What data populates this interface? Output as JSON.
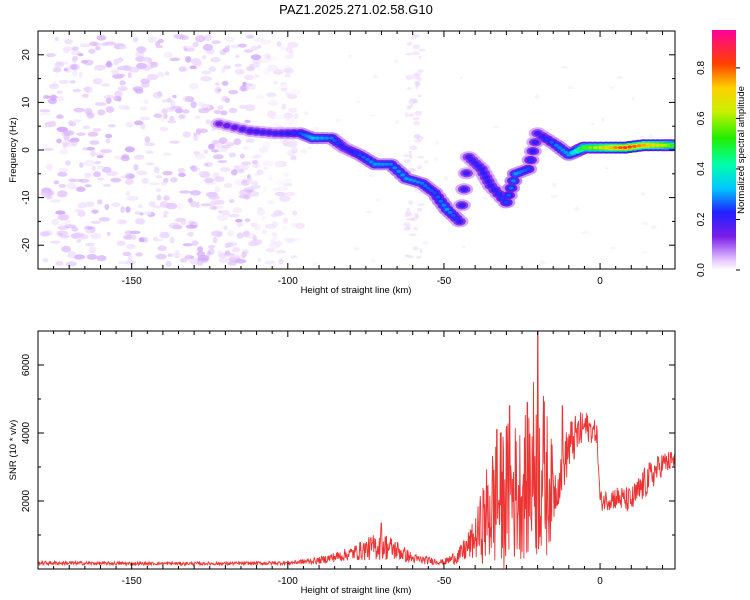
{
  "figure_title": "PAZ1.2025.271.02.58.G10",
  "colors": {
    "snr_line": "#ee3333",
    "axes": "#000000",
    "background": "#ffffff"
  },
  "chart_data": [
    {
      "type": "heatmap",
      "name": "spectrogram",
      "title": "PAZ1.2025.271.02.58.G10",
      "xlabel": "Height of straight line (km)",
      "ylabel": "Frequency (Hz)",
      "xlim": [
        -180,
        24
      ],
      "ylim": [
        -25,
        25
      ],
      "xticks": [
        -150,
        -100,
        -50,
        0
      ],
      "xtick_labels": [
        "-150",
        "-100",
        "-50",
        "0"
      ],
      "yticks": [
        -20,
        -10,
        0,
        10,
        20
      ],
      "ytick_labels": [
        "-20",
        "-10",
        "0",
        "10",
        "20"
      ],
      "colorbar": {
        "label": "Normalized spectral amplitude",
        "range": [
          0,
          0.95
        ],
        "ticks": [
          0.0,
          0.2,
          0.4,
          0.6,
          0.8
        ],
        "tick_labels": [
          "0.0",
          "0.2",
          "0.4",
          "0.6",
          "0.8"
        ],
        "colormap": "rainbow (white-violet-blue-cyan-green-yellow-red-magenta)"
      },
      "noise_region": {
        "x_range": [
          -178,
          -96
        ],
        "frequency_range": [
          -24,
          24
        ],
        "typical_amplitude": 0.04
      },
      "ridge": [
        {
          "x": -122,
          "freq": 5.5,
          "amp": 0.15
        },
        {
          "x": -112,
          "freq": 4.0,
          "amp": 0.2
        },
        {
          "x": -104,
          "freq": 3.5,
          "amp": 0.2
        },
        {
          "x": -96,
          "freq": 3.5,
          "amp": 0.25
        },
        {
          "x": -92,
          "freq": 2.5,
          "amp": 0.32
        },
        {
          "x": -86,
          "freq": 2.5,
          "amp": 0.28
        },
        {
          "x": -82,
          "freq": 0.5,
          "amp": 0.2
        },
        {
          "x": -77,
          "freq": -1.0,
          "amp": 0.25
        },
        {
          "x": -72,
          "freq": -3.0,
          "amp": 0.3
        },
        {
          "x": -67,
          "freq": -3.0,
          "amp": 0.28
        },
        {
          "x": -62,
          "freq": -6.0,
          "amp": 0.3
        },
        {
          "x": -57,
          "freq": -7.0,
          "amp": 0.28
        },
        {
          "x": -53,
          "freq": -9.0,
          "amp": 0.25
        },
        {
          "x": -49,
          "freq": -12.5,
          "amp": 0.3
        },
        {
          "x": -45,
          "freq": -15.0,
          "amp": 0.22
        },
        {
          "x": -42,
          "freq": -1.5,
          "amp": 0.2
        },
        {
          "x": -38,
          "freq": -4.0,
          "amp": 0.22
        },
        {
          "x": -35,
          "freq": -7.5,
          "amp": 0.22
        },
        {
          "x": -30,
          "freq": -11.0,
          "amp": 0.25
        },
        {
          "x": -27,
          "freq": -5.0,
          "amp": 0.3
        },
        {
          "x": -23,
          "freq": -4.0,
          "amp": 0.25
        },
        {
          "x": -20,
          "freq": 3.5,
          "amp": 0.2
        },
        {
          "x": -14,
          "freq": 1.0,
          "amp": 0.28
        },
        {
          "x": -10,
          "freq": -1.0,
          "amp": 0.3
        },
        {
          "x": -5,
          "freq": 0.5,
          "amp": 0.55
        },
        {
          "x": 2,
          "freq": 0.5,
          "amp": 0.7
        },
        {
          "x": 8,
          "freq": 0.5,
          "amp": 0.85
        },
        {
          "x": 14,
          "freq": 1.0,
          "amp": 0.75
        },
        {
          "x": 20,
          "freq": 1.0,
          "amp": 0.65
        },
        {
          "x": 24,
          "freq": 1.0,
          "amp": 0.5
        }
      ]
    },
    {
      "type": "line",
      "name": "snr",
      "xlabel": "Height of straight line (km)",
      "ylabel": "SNR (10 * v/v)",
      "xlim": [
        -180,
        24
      ],
      "ylim": [
        0,
        7000
      ],
      "xticks": [
        -150,
        -100,
        -50,
        0
      ],
      "xtick_labels": [
        "-150",
        "-100",
        "-50",
        "0"
      ],
      "yticks": [
        2000,
        4000,
        6000
      ],
      "ytick_labels": [
        "2000",
        "4000",
        "6000"
      ],
      "series": [
        {
          "name": "SNR",
          "color": "#ee3333",
          "envelope_points": [
            {
              "x": -180,
              "mean": 180,
              "spread": 60
            },
            {
              "x": -150,
              "mean": 160,
              "spread": 50
            },
            {
              "x": -120,
              "mean": 160,
              "spread": 50
            },
            {
              "x": -100,
              "mean": 180,
              "spread": 60
            },
            {
              "x": -90,
              "mean": 250,
              "spread": 100
            },
            {
              "x": -80,
              "mean": 450,
              "spread": 200
            },
            {
              "x": -70,
              "mean": 700,
              "spread": 450
            },
            {
              "x": -65,
              "mean": 550,
              "spread": 300
            },
            {
              "x": -60,
              "mean": 300,
              "spread": 150
            },
            {
              "x": -50,
              "mean": 200,
              "spread": 80
            },
            {
              "x": -45,
              "mean": 400,
              "spread": 250
            },
            {
              "x": -40,
              "mean": 900,
              "spread": 600
            },
            {
              "x": -35,
              "mean": 1800,
              "spread": 1800
            },
            {
              "x": -30,
              "mean": 2200,
              "spread": 2200
            },
            {
              "x": -25,
              "mean": 2300,
              "spread": 2000
            },
            {
              "x": -20,
              "mean": 3200,
              "spread": 3000
            },
            {
              "x": -17,
              "mean": 2500,
              "spread": 2200
            },
            {
              "x": -14,
              "mean": 2300,
              "spread": 600
            },
            {
              "x": -10,
              "mean": 3600,
              "spread": 800
            },
            {
              "x": -5,
              "mean": 4200,
              "spread": 500
            },
            {
              "x": -1,
              "mean": 4000,
              "spread": 300
            },
            {
              "x": 0,
              "mean": 2000,
              "spread": 300
            },
            {
              "x": 5,
              "mean": 2100,
              "spread": 350
            },
            {
              "x": 10,
              "mean": 2000,
              "spread": 400
            },
            {
              "x": 15,
              "mean": 2600,
              "spread": 500
            },
            {
              "x": 20,
              "mean": 3100,
              "spread": 350
            },
            {
              "x": 24,
              "mean": 3200,
              "spread": 300
            }
          ],
          "peaks": [
            {
              "x": -20,
              "y": 7000
            },
            {
              "x": -29,
              "y": 4800
            },
            {
              "x": -33,
              "y": 4100
            },
            {
              "x": -12,
              "y": 4800
            },
            {
              "x": -70,
              "y": 1350
            }
          ]
        }
      ]
    }
  ]
}
